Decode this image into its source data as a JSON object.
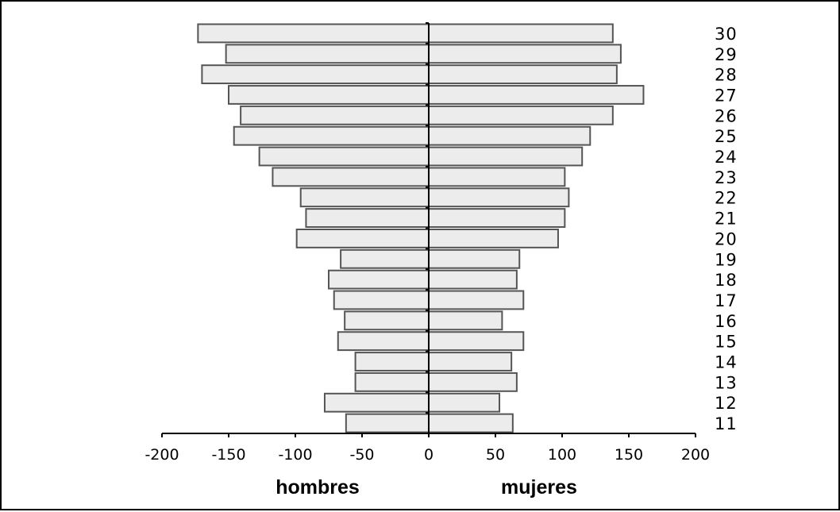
{
  "chart_data": {
    "type": "bar",
    "orientation": "horizontal",
    "layout": "population-pyramid",
    "categories": [
      "11",
      "12",
      "13",
      "14",
      "15",
      "16",
      "17",
      "18",
      "19",
      "20",
      "21",
      "22",
      "23",
      "24",
      "25",
      "26",
      "27",
      "28",
      "29",
      "30"
    ],
    "series": [
      {
        "name": "hombres",
        "values": [
          -62,
          -78,
          -55,
          -55,
          -68,
          -63,
          -71,
          -75,
          -66,
          -99,
          -92,
          -96,
          -117,
          -127,
          -146,
          -141,
          -150,
          -170,
          -152,
          -173
        ]
      },
      {
        "name": "mujeres",
        "values": [
          63,
          53,
          66,
          62,
          71,
          55,
          71,
          66,
          68,
          97,
          102,
          105,
          102,
          115,
          121,
          138,
          161,
          141,
          144,
          138
        ]
      }
    ],
    "xlim": [
      -200,
      200
    ],
    "xticks": [
      "-200",
      "-150",
      "-100",
      "-50",
      "0",
      "50",
      "100",
      "150",
      "200"
    ],
    "xlabel_left": "hombres",
    "xlabel_right": "mujeres",
    "grid": false,
    "legend": "none",
    "colors": {
      "bar_fill": "#ececec",
      "bar_stroke": "#555555",
      "axis": "#000000"
    }
  }
}
